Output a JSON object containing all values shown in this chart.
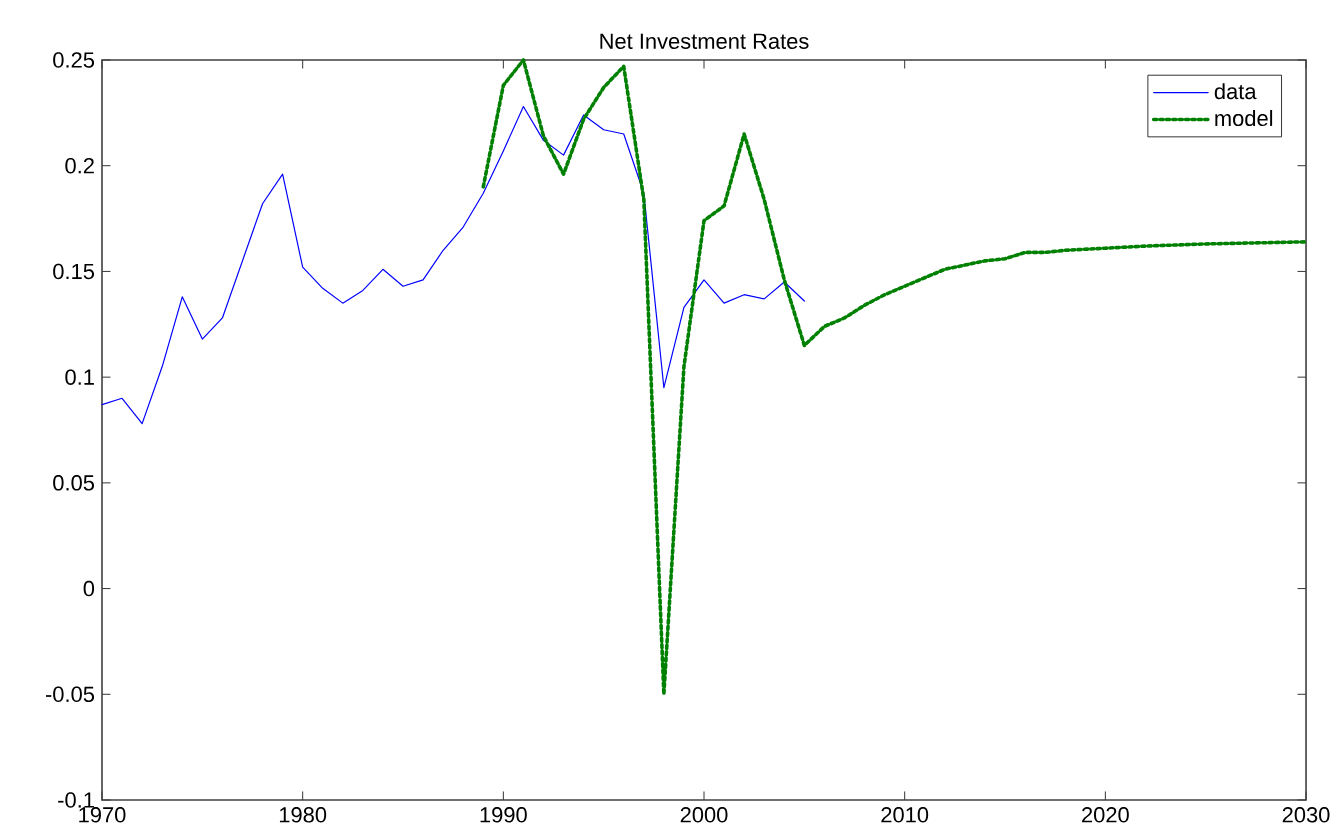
{
  "chart_data": {
    "type": "line",
    "title": "Net Investment Rates",
    "xlim": [
      1970,
      2030
    ],
    "ylim": [
      -0.1,
      0.25
    ],
    "xticks": [
      1970,
      1980,
      1990,
      2000,
      2010,
      2020,
      2030
    ],
    "yticks": [
      -0.1,
      -0.05,
      0,
      0.05,
      0.1,
      0.15,
      0.2,
      0.25
    ],
    "legend": "top right",
    "series": [
      {
        "name": "data",
        "color": "#0000ff",
        "line_style": "solid",
        "x": [
          1970,
          1971,
          1972,
          1973,
          1974,
          1975,
          1976,
          1977,
          1978,
          1979,
          1980,
          1981,
          1982,
          1983,
          1984,
          1985,
          1986,
          1987,
          1988,
          1989,
          1990,
          1991,
          1992,
          1993,
          1994,
          1995,
          1996,
          1997,
          1998,
          1999,
          2000,
          2001,
          2002,
          2003,
          2004,
          2005
        ],
        "values": [
          0.087,
          0.09,
          0.078,
          0.105,
          0.138,
          0.118,
          0.128,
          0.155,
          0.182,
          0.196,
          0.152,
          0.142,
          0.135,
          0.141,
          0.151,
          0.143,
          0.146,
          0.16,
          0.171,
          0.187,
          0.207,
          0.228,
          0.212,
          0.205,
          0.224,
          0.217,
          0.215,
          0.187,
          0.095,
          0.133,
          0.146,
          0.135,
          0.139,
          0.137,
          0.145,
          0.136
        ]
      },
      {
        "name": "model",
        "color": "#008000",
        "line_style": "dotted",
        "x": [
          1989,
          1990,
          1991,
          1992,
          1993,
          1994,
          1995,
          1996,
          1997,
          1998,
          1999,
          2000,
          2001,
          2002,
          2003,
          2004,
          2005,
          2006,
          2007,
          2008,
          2009,
          2010,
          2011,
          2012,
          2013,
          2014,
          2015,
          2016,
          2017,
          2018,
          2020,
          2022,
          2025,
          2030
        ],
        "values": [
          0.19,
          0.238,
          0.25,
          0.214,
          0.196,
          0.222,
          0.237,
          0.247,
          0.184,
          -0.05,
          0.105,
          0.174,
          0.181,
          0.215,
          0.184,
          0.146,
          0.115,
          0.124,
          0.128,
          0.134,
          0.139,
          0.143,
          0.147,
          0.151,
          0.153,
          0.155,
          0.156,
          0.159,
          0.159,
          0.16,
          0.161,
          0.162,
          0.163,
          0.164
        ]
      }
    ]
  }
}
